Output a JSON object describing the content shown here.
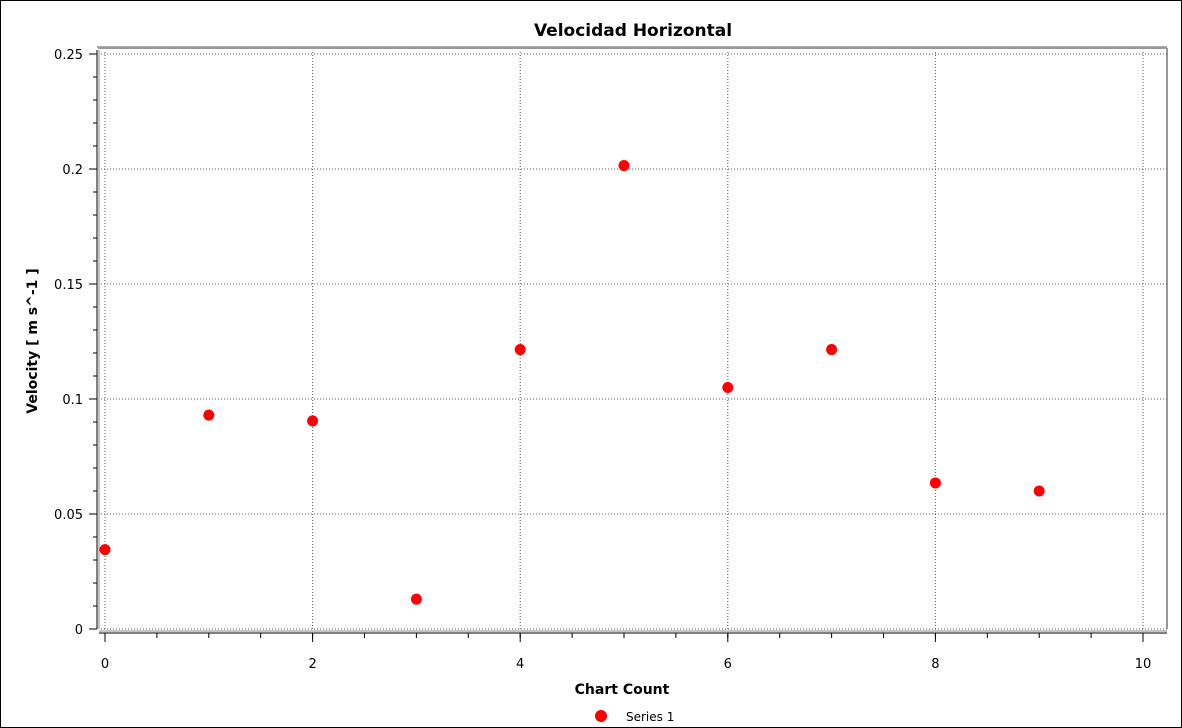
{
  "chart_data": {
    "type": "scatter",
    "title": "Velocidad Horizontal",
    "xlabel": "Chart Count",
    "ylabel": "Velocity [ m s^-1 ]",
    "xlim": [
      0,
      10
    ],
    "ylim": [
      0,
      0.25
    ],
    "x_ticks": [
      "0",
      "2",
      "4",
      "6",
      "8",
      "10"
    ],
    "y_ticks": [
      "0",
      "0.05",
      "0.1",
      "0.15",
      "0.2",
      "0.25"
    ],
    "grid": true,
    "legend_position": "bottom-center",
    "series": [
      {
        "name": "Series 1",
        "color": "#ff0000",
        "points": [
          {
            "x": 0,
            "y": 0.0345
          },
          {
            "x": 1,
            "y": 0.093
          },
          {
            "x": 2,
            "y": 0.0905
          },
          {
            "x": 3,
            "y": 0.013
          },
          {
            "x": 4,
            "y": 0.1215
          },
          {
            "x": 5,
            "y": 0.2015
          },
          {
            "x": 6,
            "y": 0.105
          },
          {
            "x": 7,
            "y": 0.1215
          },
          {
            "x": 8,
            "y": 0.0635
          },
          {
            "x": 9,
            "y": 0.06
          }
        ]
      }
    ]
  }
}
